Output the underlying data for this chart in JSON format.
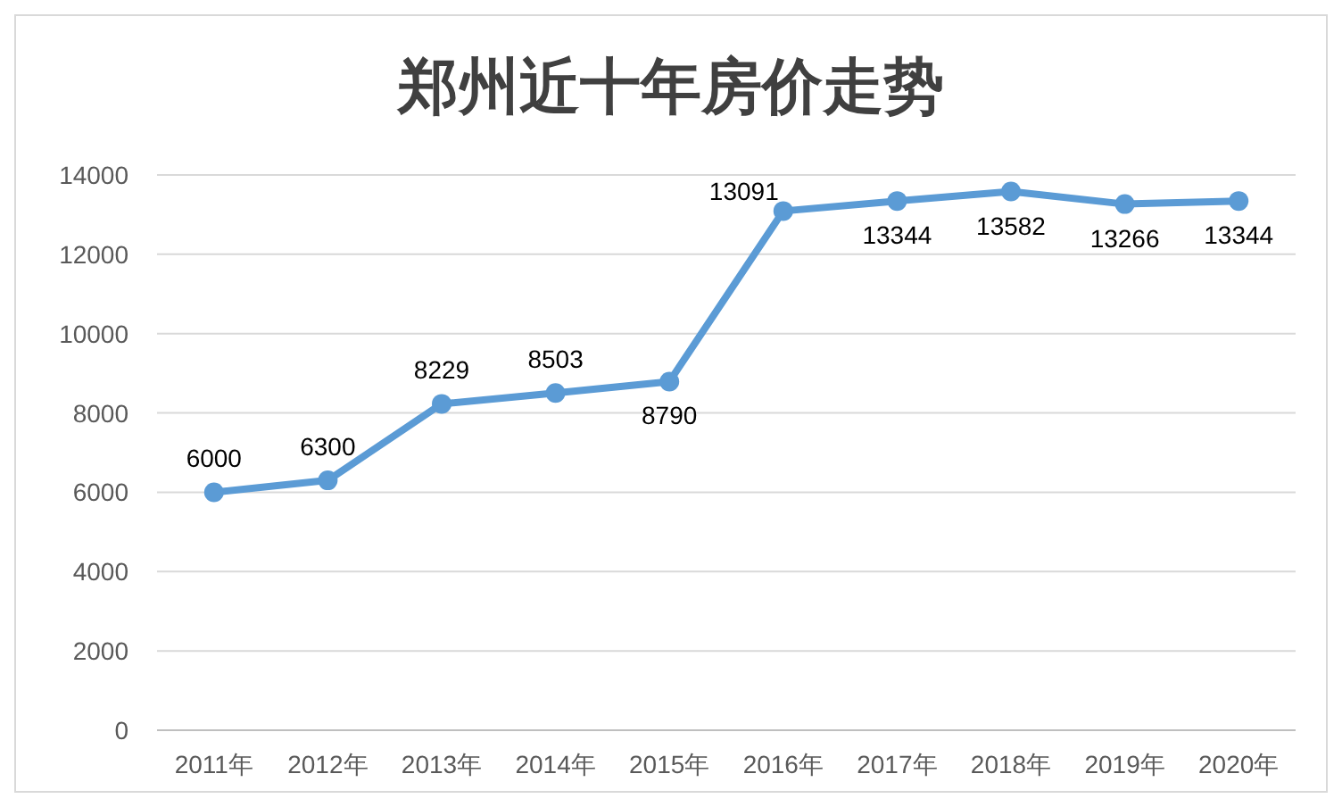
{
  "chart_data": {
    "type": "line",
    "title": "郑州近十年房价走势",
    "categories": [
      "2011年",
      "2012年",
      "2013年",
      "2014年",
      "2015年",
      "2016年",
      "2017年",
      "2018年",
      "2019年",
      "2020年"
    ],
    "series": [
      {
        "color": "#5b9bd5",
        "values": [
          6000,
          6300,
          8229,
          8503,
          8790,
          13091,
          13344,
          13582,
          13266,
          13344
        ]
      }
    ],
    "ylim": [
      0,
      14000
    ],
    "yticks": [
      0,
      2000,
      4000,
      6000,
      8000,
      10000,
      12000,
      14000
    ],
    "grid": "y",
    "marker": "circle",
    "data_labels": true
  }
}
